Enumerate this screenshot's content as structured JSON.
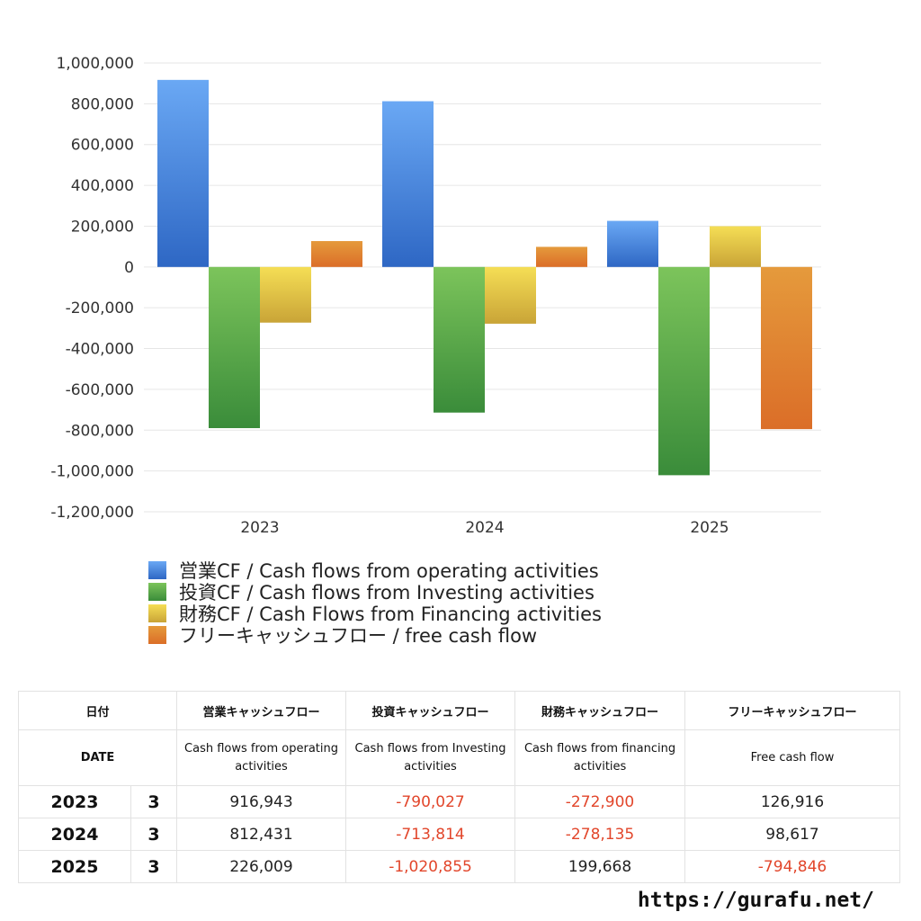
{
  "chart_data": {
    "type": "bar",
    "categories": [
      "2023",
      "2024",
      "2025"
    ],
    "series": [
      {
        "name": "営業CF / Cash flows from operating activities",
        "values": [
          916943,
          812431,
          226009
        ]
      },
      {
        "name": "投資CF / Cash flows from Investing activities",
        "values": [
          -790027,
          -713814,
          -1020855
        ]
      },
      {
        "name": "財務CF / Cash Flows from Financing activities",
        "values": [
          -272900,
          -278135,
          199668
        ]
      },
      {
        "name": "フリーキャッシュフロー / free cash flow",
        "values": [
          126916,
          98617,
          -794846
        ]
      }
    ],
    "series_colors": [
      [
        "#6aa8f4",
        "#2e67c4"
      ],
      [
        "#7cc45b",
        "#3a8c3a"
      ],
      [
        "#f5de55",
        "#c9a437"
      ],
      [
        "#e59a3c",
        "#db6e28"
      ]
    ],
    "yticks": [
      1000000,
      800000,
      600000,
      400000,
      200000,
      0,
      -200000,
      -400000,
      -600000,
      -800000,
      -1000000,
      -1200000
    ],
    "ylim": [
      -1200000,
      1000000
    ],
    "grid": true,
    "legend_position": "bottom"
  },
  "table": {
    "headers_ja": [
      "日付",
      "営業キャッシュフロー",
      "投資キャッシュフロー",
      "財務キャッシュフロー",
      "フリーキャッシュフロー"
    ],
    "headers_en": [
      "DATE",
      "Cash flows from operating activities",
      "Cash flows from Investing activities",
      "Cash flows from financing activities",
      "Free cash flow"
    ],
    "rows": [
      {
        "year": "2023",
        "month": "3",
        "values": [
          "916,943",
          "-790,027",
          "-272,900",
          "126,916"
        ]
      },
      {
        "year": "2024",
        "month": "3",
        "values": [
          "812,431",
          "-713,814",
          "-278,135",
          "98,617"
        ]
      },
      {
        "year": "2025",
        "month": "3",
        "values": [
          "226,009",
          "-1,020,855",
          "199,668",
          "-794,846"
        ]
      }
    ]
  },
  "footer": {
    "url": "https://gurafu.net/"
  }
}
